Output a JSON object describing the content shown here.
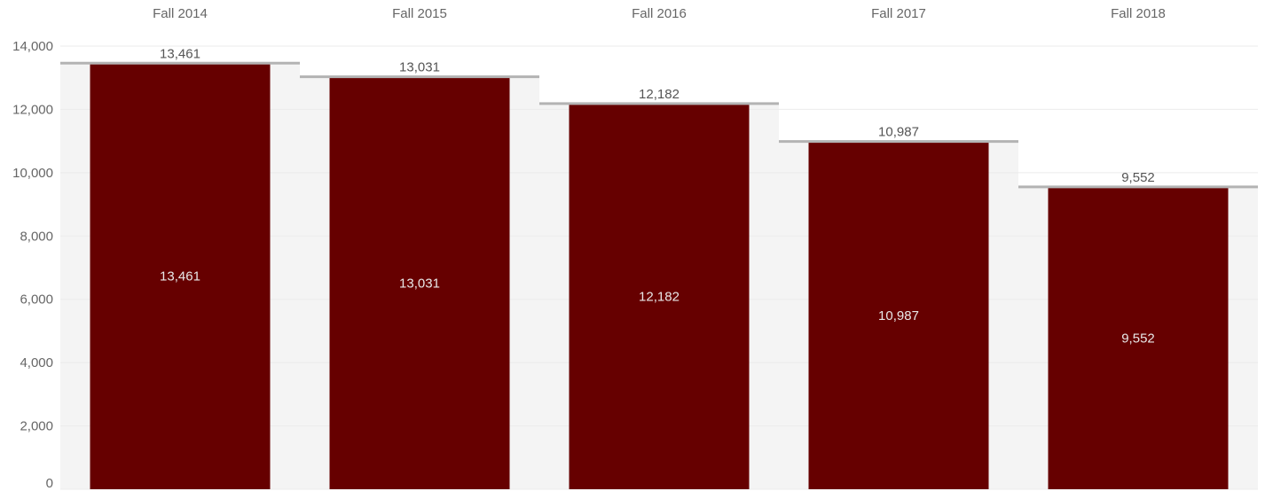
{
  "chart_data": {
    "type": "bar",
    "categories": [
      "Fall 2014",
      "Fall 2015",
      "Fall 2016",
      "Fall 2017",
      "Fall 2018"
    ],
    "series": [
      {
        "values": [
          13461,
          13031,
          12182,
          10987,
          9552
        ]
      }
    ],
    "value_labels": [
      "13,461",
      "13,031",
      "12,182",
      "10,987",
      "9,552"
    ],
    "reference_lines": [
      13461,
      13031,
      12182,
      10987,
      9552
    ],
    "ylim": [
      0,
      14000
    ],
    "yticks": [
      0,
      2000,
      4000,
      6000,
      8000,
      10000,
      12000,
      14000
    ],
    "ytick_labels": [
      "0",
      "2,000",
      "4,000",
      "6,000",
      "8,000",
      "10,000",
      "12,000",
      "14,000"
    ],
    "category_axis_position": "top",
    "grid": true,
    "colors": {
      "bar": "#660000",
      "band": "#f4f4f4",
      "reference_line": "#b3b3b3",
      "grid": "#ebebeb",
      "inner_label": "#e8e8e8"
    }
  }
}
